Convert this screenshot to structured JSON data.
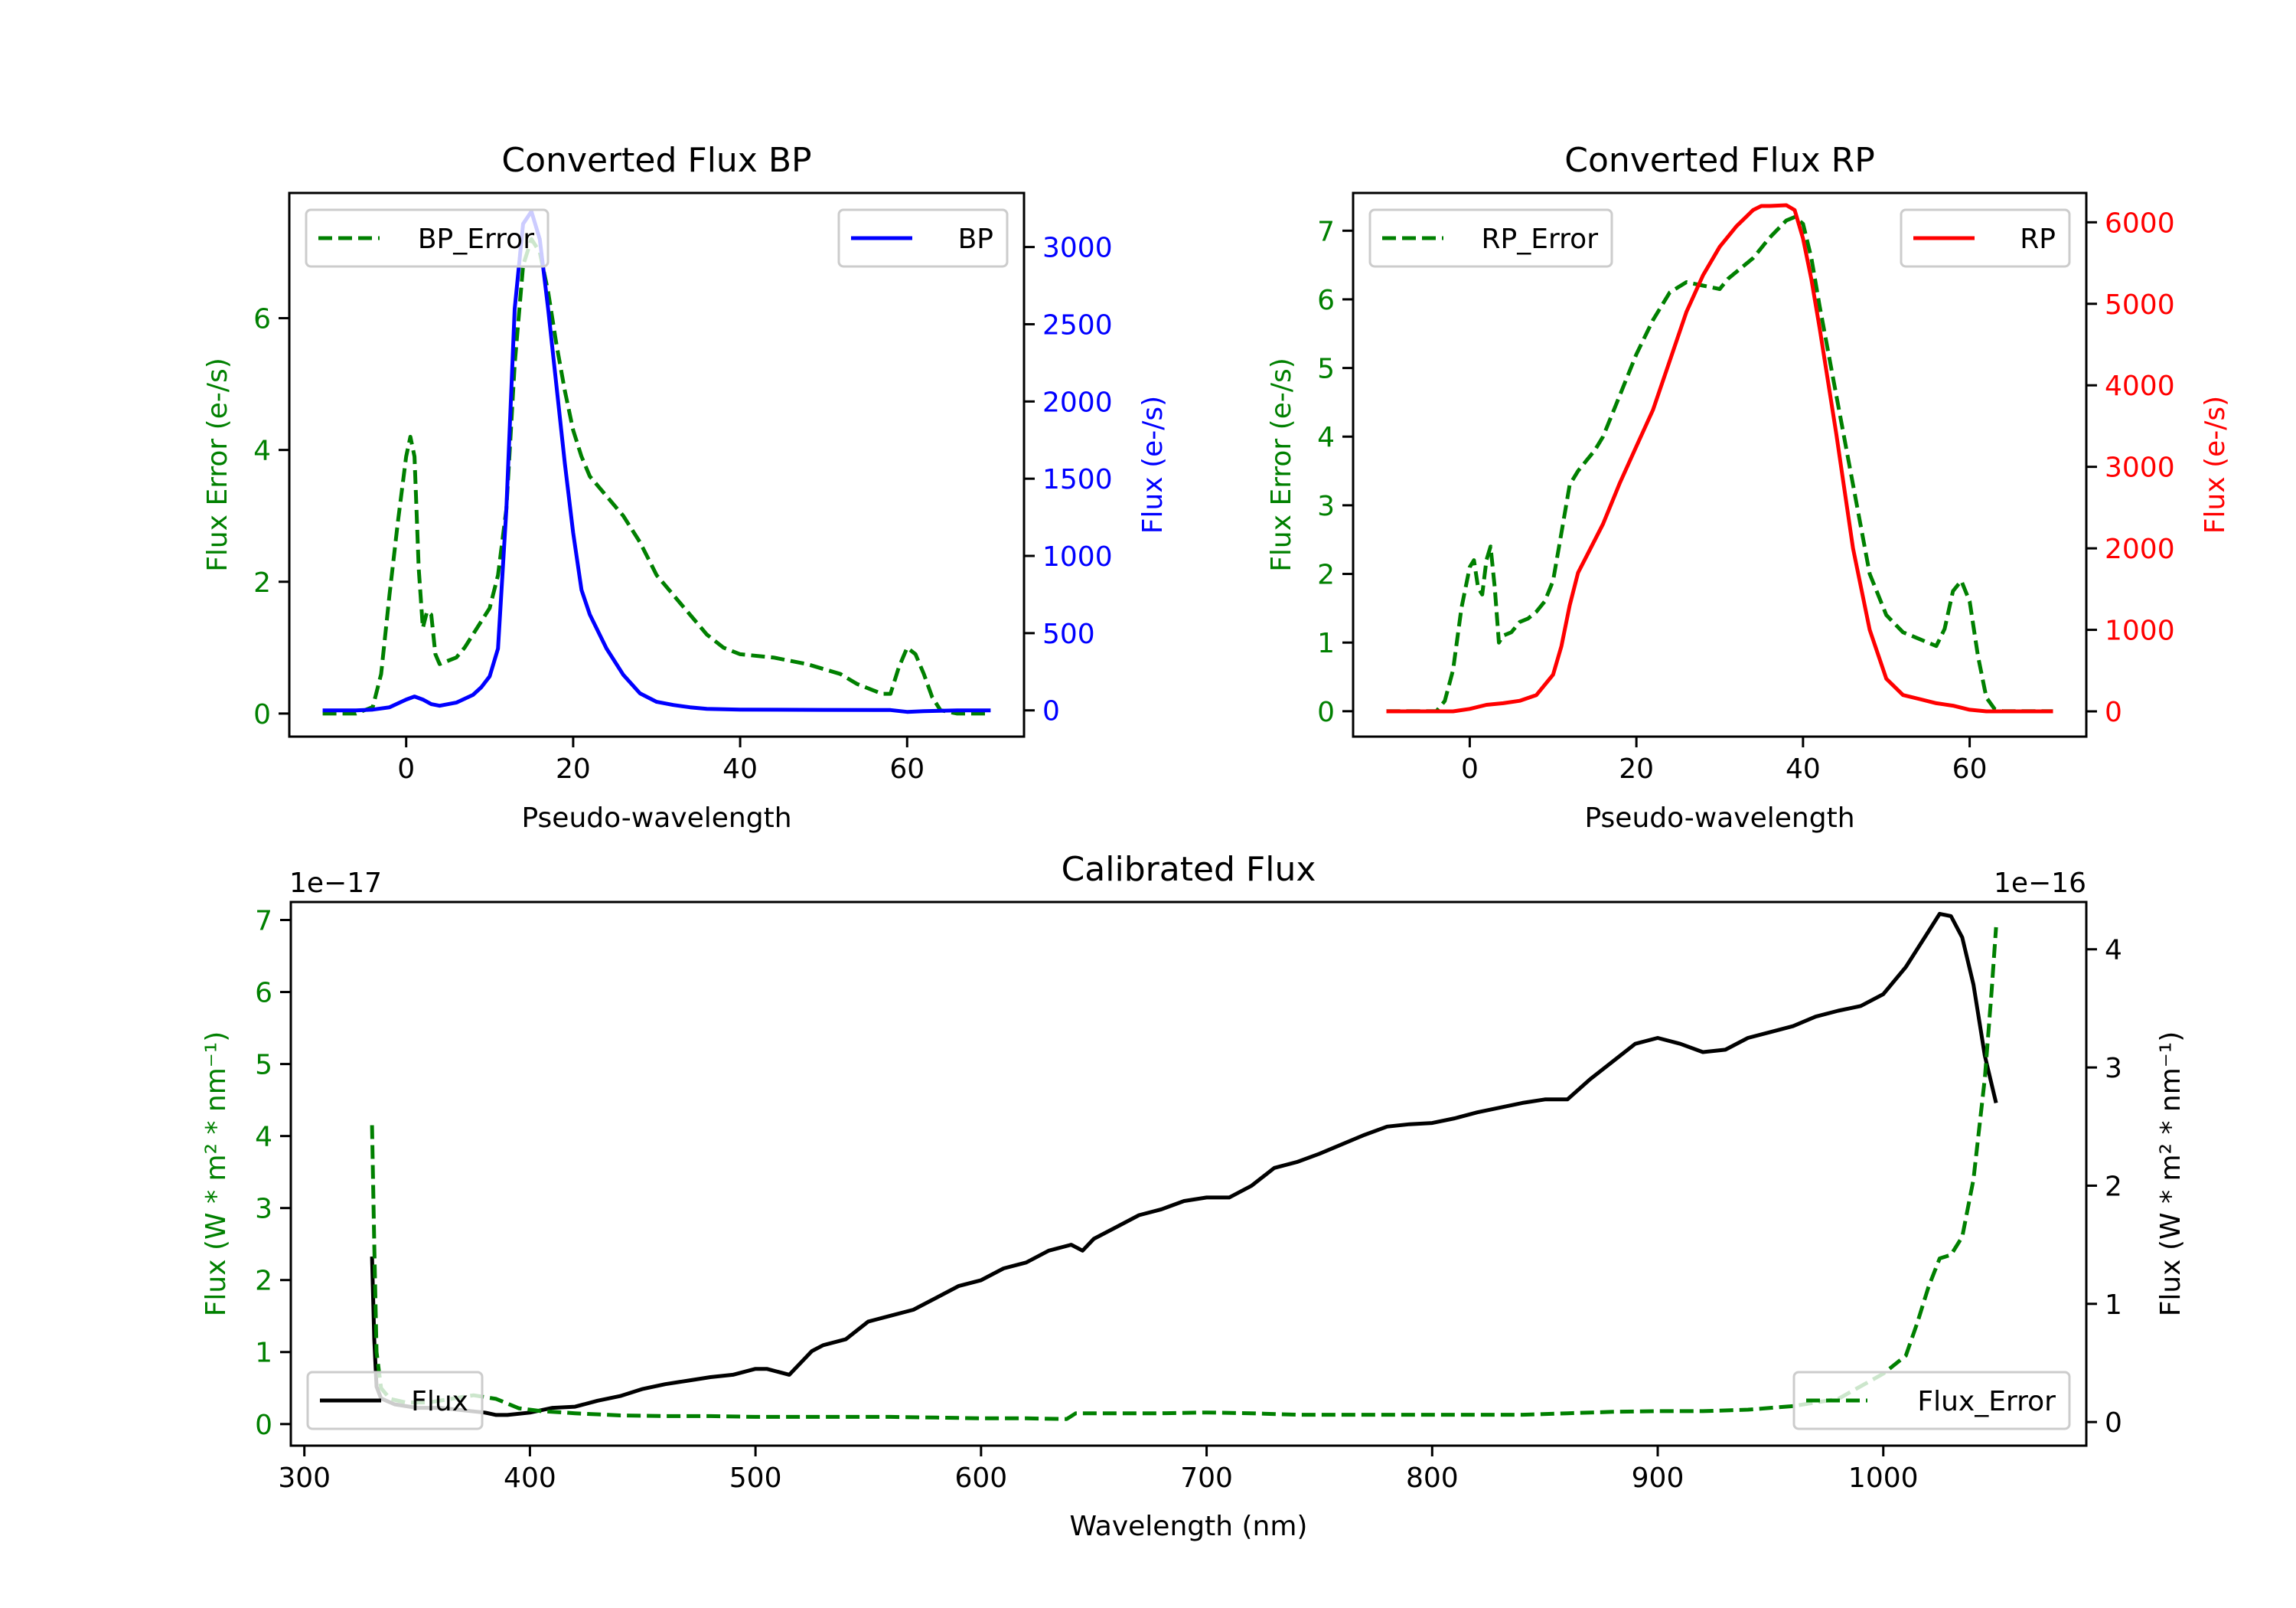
{
  "chart_data": [
    {
      "id": "bp",
      "type": "line",
      "title": "Converted Flux BP",
      "xlabel": "Pseudo-wavelength",
      "xlim": [
        -14,
        74
      ],
      "xticks": [
        0,
        20,
        40,
        60
      ],
      "left_axis": {
        "label": "Flux Error (e-/s)",
        "color": "#008000",
        "ylim": [
          -0.35,
          7.9
        ],
        "ticks": [
          0,
          2,
          4,
          6
        ]
      },
      "right_axis": {
        "label": "Flux (e-/s)",
        "color": "#0000ff",
        "ylim": [
          -170,
          3350
        ],
        "ticks": [
          0,
          500,
          1000,
          1500,
          2000,
          2500,
          3000
        ]
      },
      "series": [
        {
          "name": "BP_Error",
          "axis": "left",
          "color": "#008000",
          "style": "dashed",
          "legend": "upper-left",
          "x": [
            -10,
            -6,
            -4,
            -3,
            -2,
            -1,
            0,
            0.5,
            1,
            1.5,
            2,
            2.5,
            3,
            3.5,
            4,
            5,
            6,
            7,
            8,
            10,
            11,
            12,
            13,
            14,
            15,
            16,
            17,
            18,
            19,
            20,
            21,
            22,
            24,
            26,
            28,
            30,
            32,
            34,
            36,
            38,
            40,
            44,
            48,
            52,
            54,
            56,
            57,
            58,
            59,
            60,
            61,
            62,
            63,
            64,
            66,
            70
          ],
          "y": [
            0,
            0,
            0.1,
            0.6,
            1.8,
            2.9,
            3.9,
            4.2,
            3.9,
            2.2,
            1.3,
            1.55,
            1.5,
            0.9,
            0.75,
            0.8,
            0.85,
            1.0,
            1.2,
            1.6,
            2.1,
            3.1,
            5.3,
            6.8,
            7.2,
            7.0,
            6.4,
            5.6,
            4.9,
            4.3,
            3.9,
            3.6,
            3.3,
            3.0,
            2.6,
            2.1,
            1.8,
            1.5,
            1.2,
            1.0,
            0.9,
            0.85,
            0.75,
            0.6,
            0.45,
            0.35,
            0.3,
            0.3,
            0.7,
            1.0,
            0.9,
            0.6,
            0.25,
            0.05,
            0,
            0
          ]
        },
        {
          "name": "BP",
          "axis": "right",
          "color": "#0000ff",
          "style": "solid",
          "legend": "upper-right",
          "x": [
            -10,
            -6,
            -4,
            -2,
            0,
            1,
            2,
            3,
            4,
            6,
            8,
            9,
            10,
            11,
            12,
            13,
            14,
            15,
            16,
            17,
            18,
            19,
            20,
            21,
            22,
            24,
            26,
            28,
            30,
            32,
            34,
            36,
            40,
            50,
            58,
            60,
            62,
            66,
            70
          ],
          "y": [
            0,
            0,
            5,
            20,
            70,
            90,
            70,
            40,
            30,
            50,
            100,
            150,
            220,
            400,
            1300,
            2600,
            3150,
            3230,
            3050,
            2600,
            2100,
            1600,
            1150,
            780,
            620,
            400,
            230,
            110,
            55,
            35,
            20,
            10,
            5,
            3,
            2,
            -10,
            -5,
            0,
            0
          ]
        }
      ]
    },
    {
      "id": "rp",
      "type": "line",
      "title": "Converted Flux RP",
      "xlabel": "Pseudo-wavelength",
      "xlim": [
        -14,
        74
      ],
      "xticks": [
        0,
        20,
        40,
        60
      ],
      "left_axis": {
        "label": "Flux Error (e-/s)",
        "color": "#008000",
        "ylim": [
          -0.37,
          7.55
        ],
        "ticks": [
          0,
          1,
          2,
          3,
          4,
          5,
          6,
          7
        ]
      },
      "right_axis": {
        "label": "Flux (e-/s)",
        "color": "#ff0000",
        "ylim": [
          -310,
          6360
        ],
        "ticks": [
          0,
          1000,
          2000,
          3000,
          4000,
          5000,
          6000
        ]
      },
      "series": [
        {
          "name": "RP_Error",
          "axis": "left",
          "color": "#008000",
          "style": "dashed",
          "legend": "upper-left",
          "x": [
            -10,
            -4,
            -3,
            -2,
            -1,
            0,
            0.5,
            1,
            1.5,
            2,
            2.5,
            3,
            3.5,
            4,
            5,
            6,
            7,
            8,
            9,
            10,
            11,
            12,
            13,
            14,
            15,
            16,
            18,
            20,
            22,
            24,
            26,
            28,
            30,
            31,
            32,
            34,
            36,
            38,
            39,
            40,
            41,
            42,
            44,
            46,
            48,
            50,
            52,
            54,
            56,
            57,
            58,
            59,
            60,
            61,
            62,
            63,
            64,
            66,
            70
          ],
          "y": [
            0,
            0,
            0.15,
            0.6,
            1.5,
            2.1,
            2.2,
            1.8,
            1.7,
            2.2,
            2.4,
            1.8,
            1.0,
            1.1,
            1.15,
            1.3,
            1.35,
            1.45,
            1.6,
            1.9,
            2.6,
            3.3,
            3.5,
            3.65,
            3.8,
            4.0,
            4.6,
            5.2,
            5.7,
            6.1,
            6.25,
            6.2,
            6.15,
            6.3,
            6.4,
            6.6,
            6.9,
            7.15,
            7.2,
            7.1,
            6.6,
            5.9,
            4.6,
            3.3,
            2.0,
            1.4,
            1.15,
            1.05,
            0.95,
            1.2,
            1.75,
            1.9,
            1.6,
            0.8,
            0.2,
            0.03,
            0,
            0,
            0
          ]
        },
        {
          "name": "RP",
          "axis": "right",
          "color": "#ff0000",
          "style": "solid",
          "legend": "upper-right",
          "x": [
            -10,
            -2,
            0,
            2,
            4,
            6,
            8,
            10,
            11,
            12,
            13,
            14,
            16,
            18,
            20,
            22,
            24,
            26,
            28,
            30,
            32,
            34,
            35,
            36,
            38,
            39,
            40,
            41,
            42,
            44,
            46,
            48,
            50,
            52,
            54,
            56,
            58,
            60,
            62,
            66,
            70
          ],
          "y": [
            0,
            0,
            30,
            80,
            100,
            130,
            200,
            450,
            800,
            1300,
            1700,
            1900,
            2300,
            2800,
            3250,
            3700,
            4300,
            4900,
            5350,
            5700,
            5950,
            6150,
            6200,
            6200,
            6210,
            6150,
            5800,
            5300,
            4700,
            3400,
            2000,
            1000,
            400,
            200,
            150,
            100,
            70,
            20,
            0,
            0,
            0
          ]
        }
      ]
    },
    {
      "id": "calibrated",
      "type": "line",
      "title": "Calibrated Flux",
      "xlabel": "Wavelength (nm)",
      "xlim": [
        294,
        1090
      ],
      "xticks": [
        300,
        400,
        500,
        600,
        700,
        800,
        900,
        1000
      ],
      "left_axis": {
        "label": "Flux (W * m² * nm⁻¹)",
        "color": "#008000",
        "offset_label": "1e−17",
        "ylim": [
          -0.3,
          7.25
        ],
        "ticks": [
          0,
          1,
          2,
          3,
          4,
          5,
          6,
          7
        ]
      },
      "right_axis": {
        "label": "Flux (W * m² * nm⁻¹)",
        "color": "#000000",
        "offset_label": "1e−16",
        "ylim": [
          -0.2,
          4.4
        ],
        "ticks": [
          0,
          1,
          2,
          3,
          4
        ]
      },
      "series": [
        {
          "name": "Flux",
          "axis": "right",
          "color": "#000000",
          "style": "solid",
          "legend": "lower-left",
          "x": [
            330,
            331,
            332,
            334,
            340,
            350,
            360,
            370,
            380,
            385,
            390,
            400,
            410,
            420,
            430,
            440,
            450,
            460,
            470,
            480,
            490,
            500,
            505,
            515,
            525,
            530,
            540,
            550,
            560,
            570,
            580,
            590,
            600,
            610,
            620,
            630,
            640,
            645,
            650,
            660,
            670,
            680,
            690,
            700,
            710,
            720,
            730,
            740,
            750,
            760,
            770,
            780,
            790,
            800,
            810,
            820,
            830,
            840,
            850,
            860,
            870,
            880,
            890,
            900,
            910,
            920,
            930,
            940,
            950,
            960,
            970,
            980,
            990,
            1000,
            1010,
            1020,
            1025,
            1030,
            1035,
            1040,
            1045,
            1050
          ],
          "y": [
            1.4,
            0.7,
            0.3,
            0.2,
            0.15,
            0.12,
            0.12,
            0.1,
            0.08,
            0.06,
            0.06,
            0.08,
            0.12,
            0.13,
            0.18,
            0.22,
            0.28,
            0.32,
            0.35,
            0.38,
            0.4,
            0.45,
            0.45,
            0.4,
            0.6,
            0.65,
            0.7,
            0.85,
            0.9,
            0.95,
            1.05,
            1.15,
            1.2,
            1.3,
            1.35,
            1.45,
            1.5,
            1.45,
            1.55,
            1.65,
            1.75,
            1.8,
            1.87,
            1.9,
            1.9,
            2.0,
            2.15,
            2.2,
            2.27,
            2.35,
            2.43,
            2.5,
            2.52,
            2.53,
            2.57,
            2.62,
            2.66,
            2.7,
            2.73,
            2.73,
            2.9,
            3.05,
            3.2,
            3.25,
            3.2,
            3.13,
            3.15,
            3.25,
            3.3,
            3.35,
            3.43,
            3.48,
            3.52,
            3.62,
            3.85,
            4.15,
            4.3,
            4.28,
            4.1,
            3.7,
            3.1,
            2.7
          ]
        },
        {
          "name": "Flux_Error",
          "axis": "left",
          "color": "#008000",
          "style": "dashed",
          "legend": "lower-right",
          "x": [
            330,
            331,
            332,
            334,
            338,
            345,
            355,
            365,
            375,
            385,
            395,
            405,
            420,
            440,
            460,
            480,
            500,
            520,
            540,
            560,
            580,
            600,
            620,
            638,
            642,
            660,
            680,
            700,
            720,
            740,
            760,
            780,
            800,
            820,
            840,
            860,
            880,
            900,
            920,
            940,
            960,
            980,
            1000,
            1010,
            1015,
            1020,
            1025,
            1030,
            1035,
            1040,
            1045,
            1048,
            1050
          ],
          "y": [
            4.15,
            2.5,
            1.0,
            0.5,
            0.35,
            0.3,
            0.3,
            0.35,
            0.4,
            0.35,
            0.22,
            0.18,
            0.15,
            0.12,
            0.11,
            0.11,
            0.1,
            0.1,
            0.1,
            0.1,
            0.09,
            0.08,
            0.08,
            0.07,
            0.15,
            0.15,
            0.15,
            0.16,
            0.15,
            0.13,
            0.13,
            0.13,
            0.13,
            0.13,
            0.13,
            0.15,
            0.17,
            0.18,
            0.18,
            0.2,
            0.25,
            0.35,
            0.7,
            0.95,
            1.4,
            1.9,
            2.3,
            2.35,
            2.6,
            3.4,
            4.8,
            6.0,
            6.9
          ]
        }
      ]
    }
  ]
}
